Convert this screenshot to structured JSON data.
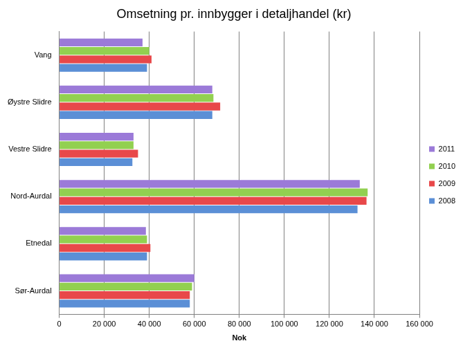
{
  "chart_data": {
    "type": "bar",
    "title": "Omsetning pr. innbygger i detaljhandel (kr)",
    "x_label": "Nok",
    "orientation": "horizontal",
    "categories": [
      "Vang",
      "Øystre Slidre",
      "Vestre Slidre",
      "Nord-Aurdal",
      "Etnedal",
      "Sør-Aurdal"
    ],
    "series": [
      {
        "name": "2011",
        "color": "#9b7ad8",
        "values": [
          37000,
          68000,
          33000,
          133500,
          38500,
          60000
        ]
      },
      {
        "name": "2010",
        "color": "#92d050",
        "values": [
          40000,
          68500,
          33000,
          137000,
          39000,
          59000
        ]
      },
      {
        "name": "2009",
        "color": "#e8484a",
        "values": [
          41000,
          71500,
          35000,
          136500,
          40500,
          58000
        ]
      },
      {
        "name": "2008",
        "color": "#5b8fd6",
        "values": [
          39000,
          68000,
          32500,
          132500,
          39000,
          58000
        ]
      }
    ],
    "xlim": [
      0,
      160000
    ],
    "xticks": [
      0,
      {
        "value": 20000,
        "label": "20 000"
      },
      {
        "value": 40000,
        "label": "40 000"
      },
      {
        "value": 60000,
        "label": "60 000"
      },
      {
        "value": 80000,
        "label": "80 000"
      },
      {
        "value": 100000,
        "label": "100 000"
      },
      {
        "value": 120000,
        "label": "120 000"
      },
      {
        "value": 140000,
        "label": "140 000"
      },
      {
        "value": 160000,
        "label": "160 000"
      }
    ],
    "grid": true,
    "legend": "right"
  }
}
